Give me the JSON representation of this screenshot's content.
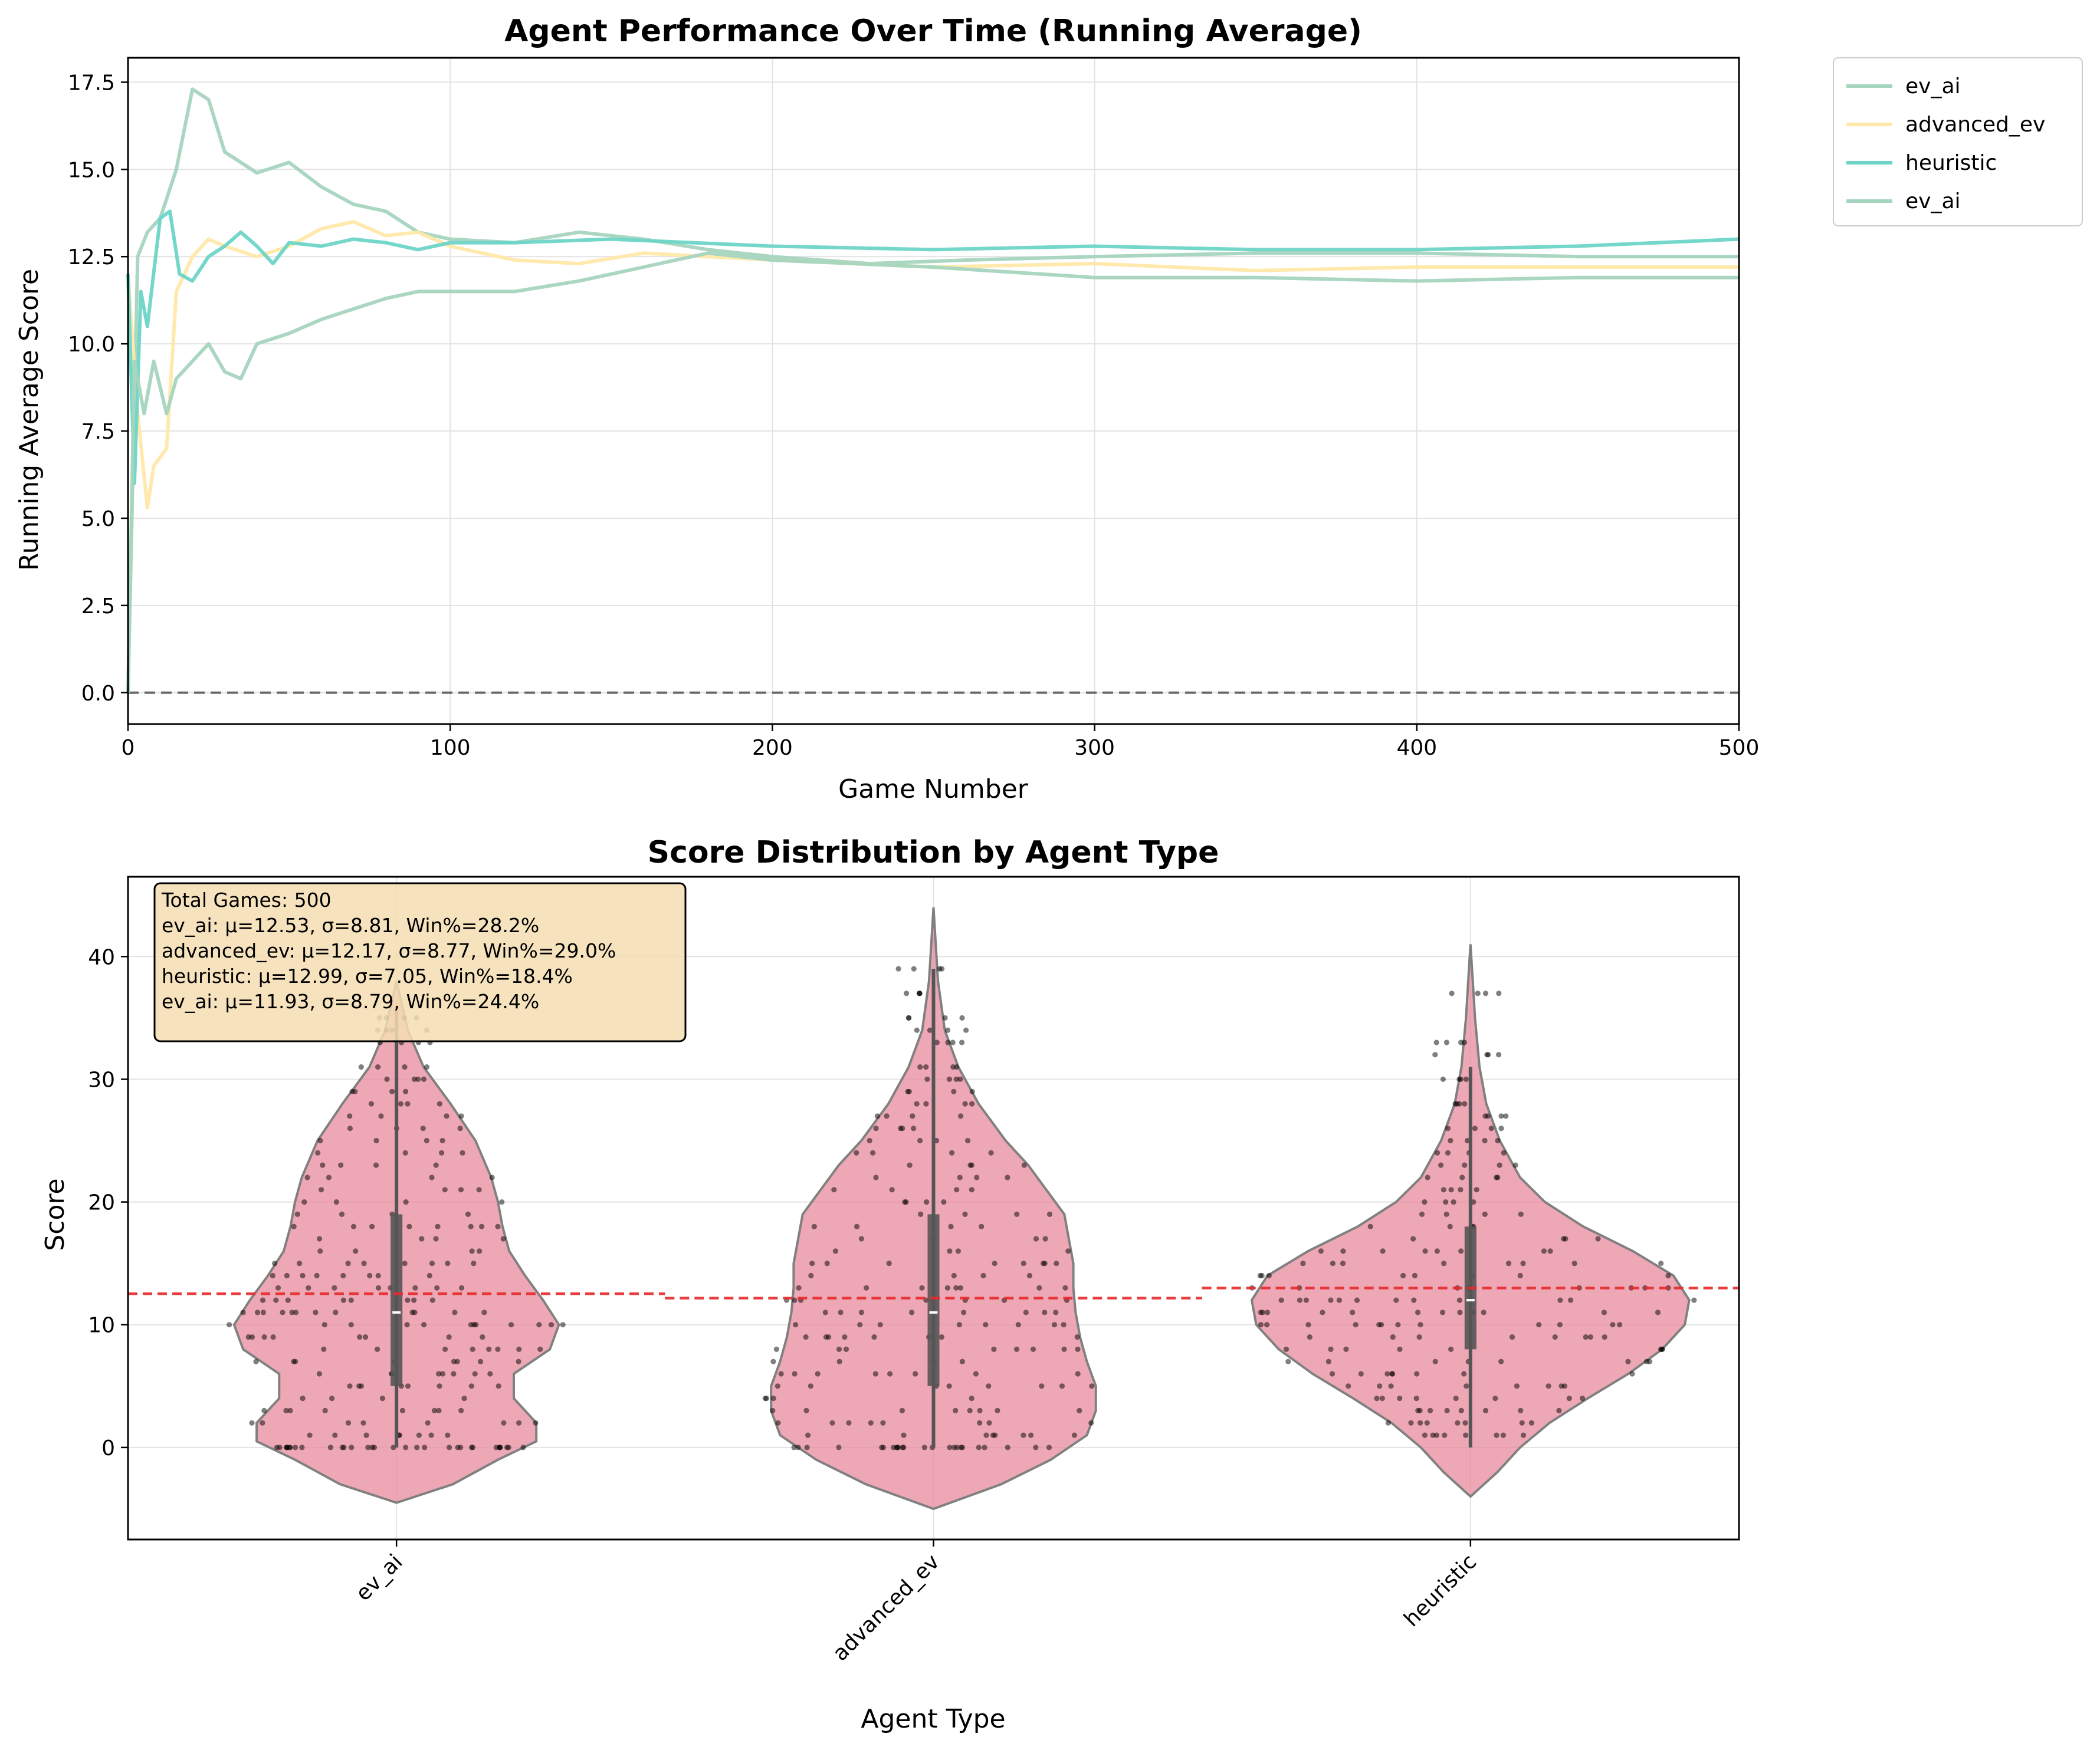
{
  "chart_data": [
    {
      "type": "line",
      "title": "Agent Performance Over Time (Running Average)",
      "xlabel": "Game Number",
      "ylabel": "Running Average Score",
      "xlim": [
        0,
        500
      ],
      "ylim": [
        -0.9,
        18.2
      ],
      "xticks": [
        0,
        100,
        200,
        300,
        400,
        500
      ],
      "yticks": [
        0.0,
        2.5,
        5.0,
        7.5,
        10.0,
        12.5,
        15.0,
        17.5
      ],
      "ytick_labels": [
        "0.0",
        "2.5",
        "5.0",
        "7.5",
        "10.0",
        "12.5",
        "15.0",
        "17.5"
      ],
      "grid": true,
      "legend": "outside right, top",
      "reference_line": {
        "y": 0,
        "style": "dashed",
        "color": "#555555"
      },
      "series": [
        {
          "name": "ev_ai",
          "color": "#a6d5bf",
          "x": [
            0,
            3,
            6,
            10,
            15,
            20,
            25,
            30,
            40,
            50,
            60,
            70,
            80,
            90,
            100,
            120,
            140,
            160,
            180,
            200,
            230,
            260,
            300,
            350,
            400,
            450,
            500
          ],
          "y": [
            0,
            12.5,
            13.2,
            13.6,
            15.0,
            17.3,
            17.0,
            15.5,
            14.9,
            15.2,
            14.5,
            14.0,
            13.8,
            13.2,
            13.0,
            12.9,
            13.2,
            13.0,
            12.7,
            12.5,
            12.3,
            12.4,
            12.5,
            12.6,
            12.6,
            12.5,
            12.5
          ]
        },
        {
          "name": "advanced_ev",
          "color": "#ffe8a8",
          "x": [
            0,
            3,
            6,
            8,
            12,
            15,
            20,
            25,
            30,
            40,
            50,
            60,
            70,
            80,
            90,
            100,
            120,
            140,
            160,
            180,
            200,
            250,
            300,
            350,
            400,
            450,
            500
          ],
          "y": [
            12.0,
            8.0,
            5.3,
            6.5,
            7.0,
            11.5,
            12.5,
            13.0,
            12.8,
            12.5,
            12.8,
            13.3,
            13.5,
            13.1,
            13.2,
            12.8,
            12.4,
            12.3,
            12.6,
            12.5,
            12.4,
            12.2,
            12.3,
            12.1,
            12.2,
            12.2,
            12.2
          ]
        },
        {
          "name": "heuristic",
          "color": "#6dd5c7",
          "x": [
            0,
            2,
            4,
            6,
            10,
            13,
            16,
            20,
            25,
            30,
            35,
            40,
            45,
            50,
            60,
            70,
            80,
            90,
            100,
            120,
            150,
            200,
            250,
            300,
            350,
            400,
            450,
            500
          ],
          "y": [
            12.0,
            6.0,
            11.5,
            10.5,
            13.6,
            13.8,
            12.0,
            11.8,
            12.5,
            12.8,
            13.2,
            12.8,
            12.3,
            12.9,
            12.8,
            13.0,
            12.9,
            12.7,
            12.9,
            12.9,
            13.0,
            12.8,
            12.7,
            12.8,
            12.7,
            12.7,
            12.8,
            13.0
          ]
        },
        {
          "name": "ev_ai",
          "color": "#a6d5bf",
          "x": [
            0,
            2,
            5,
            8,
            12,
            15,
            20,
            25,
            30,
            35,
            40,
            50,
            60,
            70,
            80,
            90,
            100,
            120,
            140,
            160,
            180,
            200,
            250,
            300,
            350,
            400,
            450,
            500
          ],
          "y": [
            0,
            9.5,
            8.0,
            9.5,
            8.0,
            9.0,
            9.5,
            10.0,
            9.2,
            9.0,
            10.0,
            10.3,
            10.7,
            11.0,
            11.3,
            11.5,
            11.5,
            11.5,
            11.8,
            12.2,
            12.6,
            12.4,
            12.2,
            11.9,
            11.9,
            11.8,
            11.9,
            11.9
          ]
        }
      ]
    },
    {
      "type": "violin",
      "title": "Score Distribution by Agent Type",
      "xlabel": "Agent Type",
      "ylabel": "Score",
      "categories": [
        "ev_ai",
        "advanced_ev",
        "heuristic"
      ],
      "ylim": [
        -7.5,
        46.5
      ],
      "yticks": [
        0,
        10,
        20,
        30,
        40
      ],
      "grid": true,
      "violin_color": "#e8899c",
      "mean_line_color": "#e8292b",
      "violins": [
        {
          "name": "ev_ai",
          "min": -4.5,
          "max": 38.0,
          "q1": 5,
          "median": 11,
          "q3": 19,
          "whisker_low": 0,
          "whisker_high": 36,
          "mean": 12.53,
          "profile": [
            [
              -4.5,
              0.0
            ],
            [
              -3,
              0.25
            ],
            [
              -1,
              0.45
            ],
            [
              0.5,
              0.62
            ],
            [
              2,
              0.62
            ],
            [
              4,
              0.52
            ],
            [
              6,
              0.52
            ],
            [
              8,
              0.68
            ],
            [
              10,
              0.72
            ],
            [
              12,
              0.65
            ],
            [
              14,
              0.57
            ],
            [
              16,
              0.5
            ],
            [
              18,
              0.47
            ],
            [
              20,
              0.45
            ],
            [
              22,
              0.42
            ],
            [
              25,
              0.35
            ],
            [
              28,
              0.24
            ],
            [
              31,
              0.12
            ],
            [
              34,
              0.05
            ],
            [
              38,
              0.0
            ]
          ],
          "points": [
            0,
            0,
            0,
            0,
            0,
            0,
            0,
            0,
            1,
            1,
            2,
            2,
            3,
            3,
            4,
            5,
            5,
            6,
            6,
            7,
            7,
            8,
            8,
            9,
            9,
            10,
            10,
            10,
            11,
            11,
            11,
            12,
            12,
            13,
            13,
            14,
            14,
            15,
            15,
            16,
            17,
            18,
            18,
            19,
            20,
            21,
            22,
            23,
            24,
            25,
            26,
            27,
            28,
            29,
            30,
            31,
            33,
            34,
            35
          ]
        },
        {
          "name": "advanced_ev",
          "min": -5.0,
          "max": 44.0,
          "q1": 5,
          "median": 11,
          "q3": 19,
          "whisker_low": 0,
          "whisker_high": 39,
          "mean": 12.17,
          "profile": [
            [
              -5,
              0.0
            ],
            [
              -3,
              0.3
            ],
            [
              -1,
              0.52
            ],
            [
              1,
              0.68
            ],
            [
              3,
              0.72
            ],
            [
              5,
              0.72
            ],
            [
              7,
              0.68
            ],
            [
              9,
              0.65
            ],
            [
              11,
              0.63
            ],
            [
              13,
              0.62
            ],
            [
              15,
              0.62
            ],
            [
              17,
              0.6
            ],
            [
              19,
              0.58
            ],
            [
              21,
              0.5
            ],
            [
              23,
              0.42
            ],
            [
              25,
              0.32
            ],
            [
              28,
              0.2
            ],
            [
              31,
              0.11
            ],
            [
              34,
              0.05
            ],
            [
              38,
              0.02
            ],
            [
              41,
              0.01
            ],
            [
              44,
              0.0
            ]
          ],
          "points": [
            0,
            0,
            0,
            0,
            0,
            0,
            1,
            1,
            2,
            2,
            3,
            3,
            4,
            5,
            5,
            6,
            6,
            7,
            8,
            8,
            9,
            9,
            10,
            10,
            11,
            11,
            12,
            12,
            13,
            13,
            14,
            15,
            15,
            16,
            17,
            18,
            19,
            20,
            21,
            22,
            23,
            24,
            25,
            26,
            27,
            28,
            29,
            30,
            31,
            33,
            34,
            35,
            37,
            39
          ]
        },
        {
          "name": "heuristic",
          "min": -4.0,
          "max": 41.0,
          "q1": 8,
          "median": 12,
          "q3": 18,
          "whisker_low": 0,
          "whisker_high": 31,
          "mean": 12.99,
          "profile": [
            [
              -4,
              0.0
            ],
            [
              -2,
              0.12
            ],
            [
              0,
              0.22
            ],
            [
              2,
              0.35
            ],
            [
              4,
              0.52
            ],
            [
              6,
              0.7
            ],
            [
              8,
              0.85
            ],
            [
              10,
              0.95
            ],
            [
              12,
              0.97
            ],
            [
              14,
              0.9
            ],
            [
              16,
              0.72
            ],
            [
              18,
              0.5
            ],
            [
              20,
              0.33
            ],
            [
              22,
              0.22
            ],
            [
              25,
              0.13
            ],
            [
              28,
              0.07
            ],
            [
              31,
              0.04
            ],
            [
              35,
              0.02
            ],
            [
              38,
              0.01
            ],
            [
              41,
              0.0
            ]
          ],
          "points": [
            1,
            1,
            2,
            2,
            3,
            3,
            4,
            4,
            5,
            5,
            6,
            6,
            7,
            7,
            8,
            8,
            9,
            9,
            10,
            10,
            10,
            11,
            11,
            11,
            12,
            12,
            12,
            13,
            13,
            14,
            14,
            15,
            15,
            16,
            16,
            17,
            18,
            19,
            20,
            21,
            22,
            23,
            24,
            25,
            26,
            27,
            28,
            30,
            32,
            33,
            37
          ]
        }
      ],
      "mean_lines": [
        {
          "from": 0,
          "to": 1,
          "y": 12.53
        },
        {
          "from": 1,
          "to": 2,
          "y": 12.17
        },
        {
          "from": 2,
          "to": 3,
          "y": 12.99
        },
        {
          "from": 3,
          "to": 3.5,
          "y": 11.93
        }
      ],
      "stats_box": {
        "lines": [
          "Total Games: 500",
          "ev_ai: μ=12.53, σ=8.81, Win%=28.2%",
          "advanced_ev: μ=12.17, σ=8.77, Win%=29.0%",
          "heuristic: μ=12.99, σ=7.05, Win%=18.4%",
          "ev_ai: μ=11.93, σ=8.79, Win%=24.4%"
        ]
      }
    }
  ]
}
